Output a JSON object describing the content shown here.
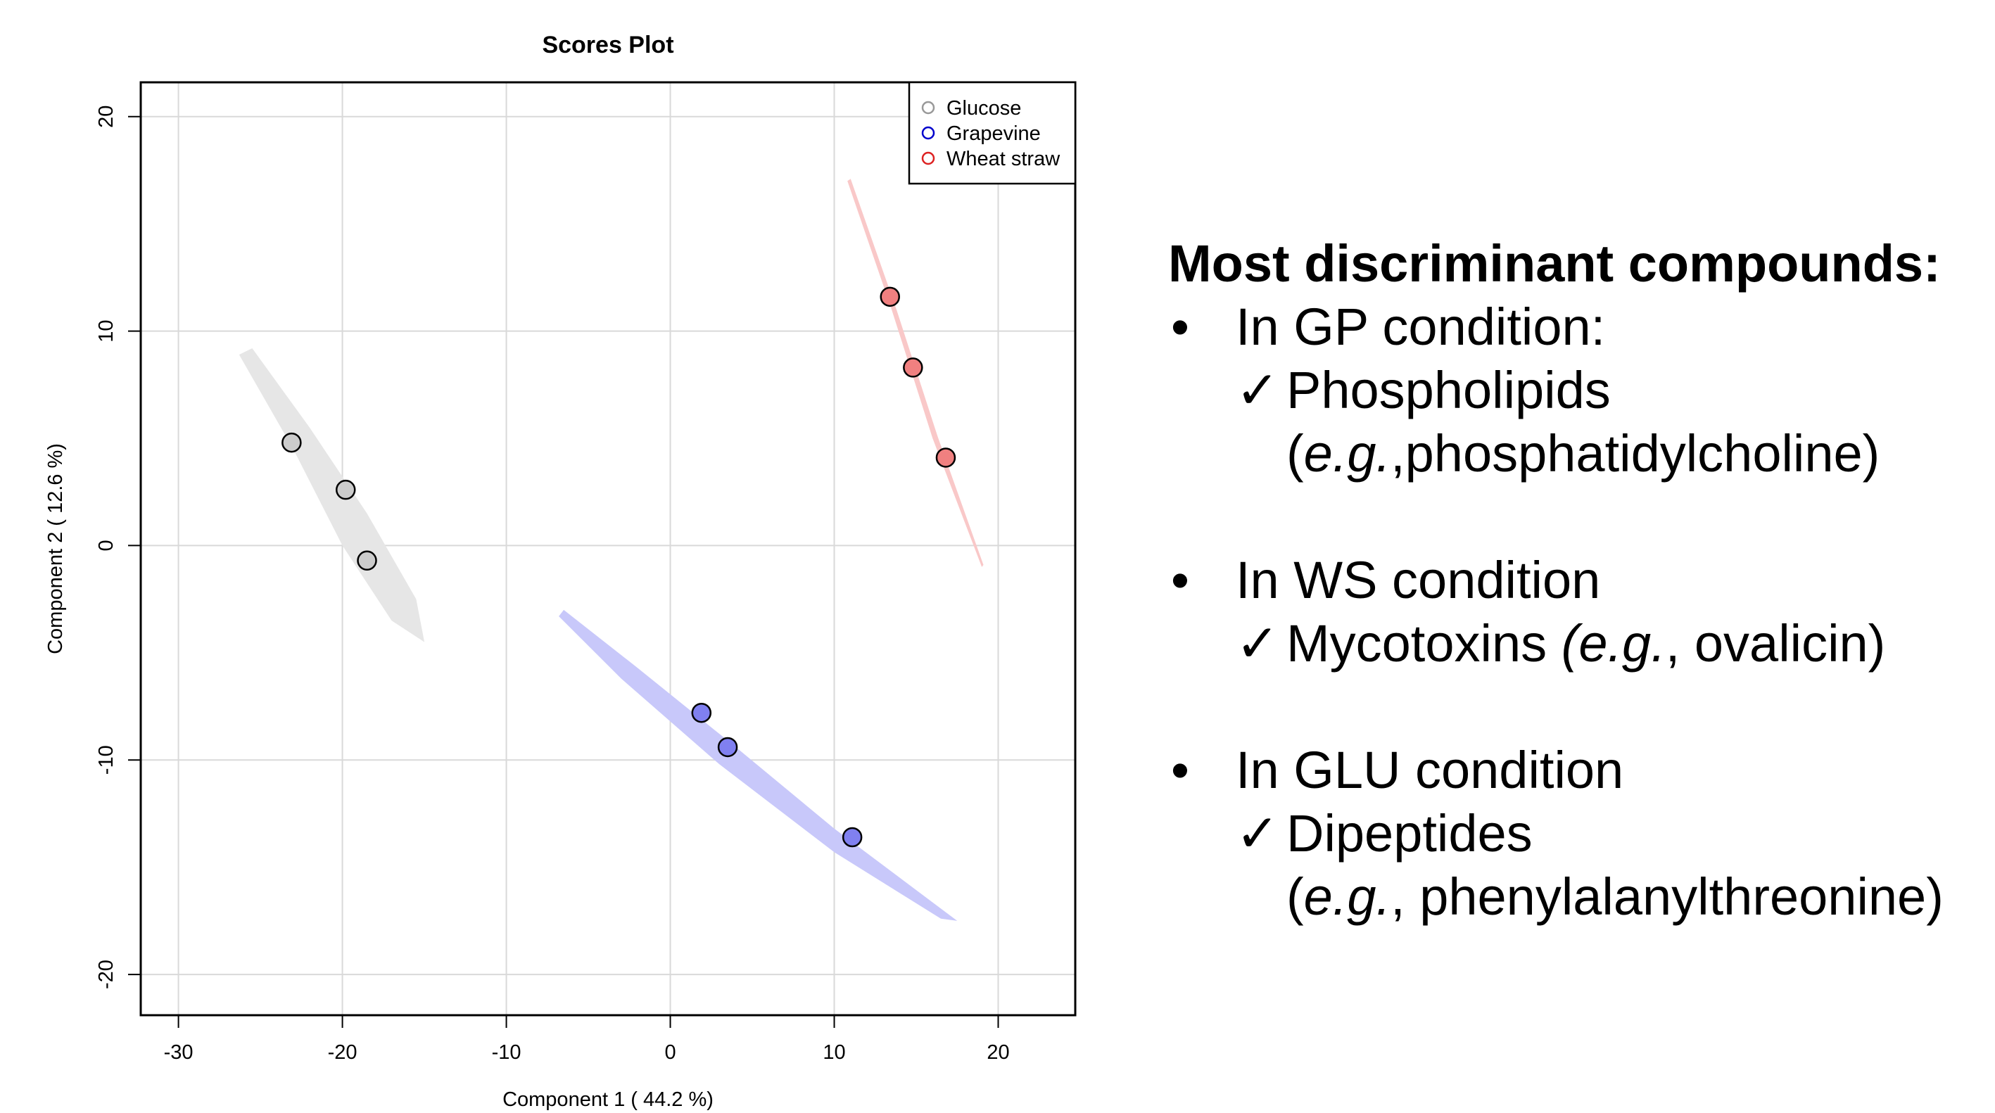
{
  "chart_data": {
    "type": "scatter",
    "title": "Scores Plot",
    "xlabel": "Component 1 ( 44.2 %)",
    "ylabel": "Component 2 ( 12.6 %)",
    "xlim": [
      -32.3,
      24.7
    ],
    "ylim": [
      -21.9,
      21.6
    ],
    "xticks": [
      -30,
      -20,
      -10,
      0,
      10,
      20
    ],
    "yticks": [
      -20,
      -10,
      0,
      10,
      20
    ],
    "grid": true,
    "legend_position": "top-right",
    "series": [
      {
        "name": "Glucose",
        "color": "#999999",
        "fill": "#cccccc",
        "ellipse_color": "#e6e6e6",
        "x": [
          -23.1,
          -19.8,
          -18.5
        ],
        "y": [
          4.8,
          2.6,
          -0.7
        ],
        "ellipse": [
          [
            -26.3,
            8.9
          ],
          [
            -23,
            4.5
          ],
          [
            -20,
            0
          ],
          [
            -17,
            -3.5
          ],
          [
            -15,
            -4.5
          ],
          [
            -15.5,
            -2.5
          ],
          [
            -18.5,
            1.5
          ],
          [
            -22,
            5.5
          ],
          [
            -25.5,
            9.2
          ]
        ]
      },
      {
        "name": "Grapevine",
        "color": "#0000cc",
        "fill": "#8080f0",
        "ellipse_color": "#c8c8fa",
        "x": [
          1.9,
          3.5,
          11.1
        ],
        "y": [
          -7.8,
          -9.4,
          -13.6
        ],
        "ellipse": [
          [
            -6.5,
            -3.0
          ],
          [
            -2,
            -5.7
          ],
          [
            4,
            -9.4
          ],
          [
            10,
            -13.2
          ],
          [
            17.5,
            -17.5
          ],
          [
            16.5,
            -17.4
          ],
          [
            10,
            -14.3
          ],
          [
            3,
            -10.2
          ],
          [
            -3,
            -6.2
          ],
          [
            -6.8,
            -3.3
          ]
        ]
      },
      {
        "name": "Wheat straw",
        "color": "#dd2222",
        "fill": "#f08080",
        "ellipse_color": "#f9c8c8",
        "x": [
          13.4,
          14.8,
          16.8
        ],
        "y": [
          11.6,
          8.3,
          4.1
        ],
        "ellipse": [
          [
            10.8,
            17.0
          ],
          [
            13.5,
            11.0
          ],
          [
            16,
            5.0
          ],
          [
            19.0,
            -1.0
          ],
          [
            19.1,
            -0.9
          ],
          [
            16.3,
            5.1
          ],
          [
            13.8,
            11.0
          ],
          [
            11.0,
            17.1
          ]
        ]
      }
    ]
  },
  "panel": {
    "heading": "Most discriminant compounds:",
    "gp_bullet": "In GP condition:",
    "gp_check": "✓",
    "gp_item": "Phospholipids",
    "gp_ex_open": "(",
    "gp_ex_eg": "e.g.",
    "gp_ex_rest": ",phosphatidylcholine)",
    "ws_bullet": "In WS condition",
    "ws_check": "✓",
    "ws_item": "Mycotoxins ",
    "ws_ex_open": "(",
    "ws_ex_eg": "e.g.",
    "ws_ex_rest": ", ovalicin)",
    "glu_bullet": "In GLU condition",
    "glu_check": "✓",
    "glu_item": "Dipeptides",
    "glu_ex_open": "(",
    "glu_ex_eg": "e.g.",
    "glu_ex_rest": ", phenylalanylthreonine)"
  }
}
